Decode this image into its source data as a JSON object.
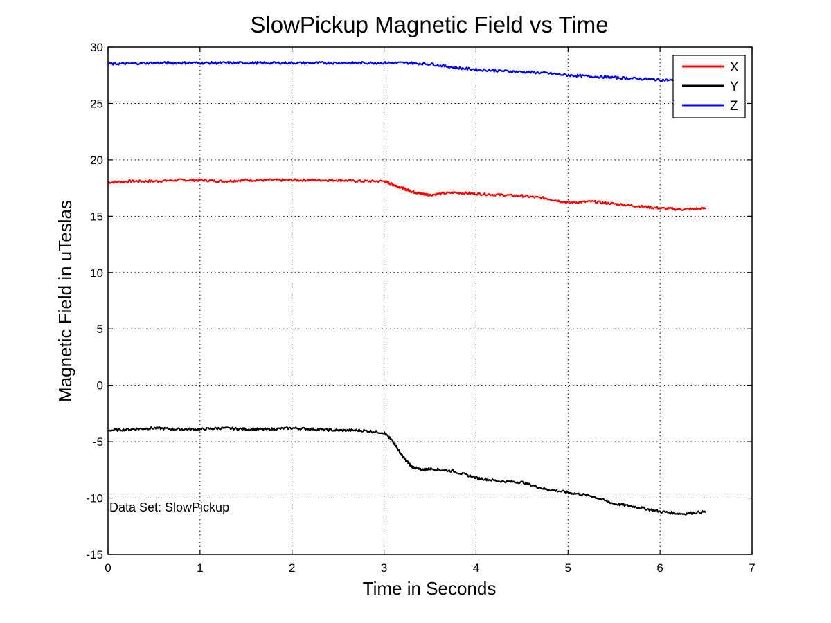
{
  "chart_data": {
    "type": "line",
    "title": "SlowPickup Magnetic Field vs Time",
    "xlabel": "Time in Seconds",
    "ylabel": "Magnetic Field in uTeslas",
    "xlim": [
      0,
      7
    ],
    "ylim": [
      -15,
      30
    ],
    "xticks": [
      "0",
      "1",
      "2",
      "3",
      "4",
      "5",
      "6",
      "7"
    ],
    "yticks": [
      "30",
      "25",
      "20",
      "15",
      "10",
      "5",
      "0",
      "-5",
      "-10",
      "-15"
    ],
    "grid": true,
    "legend_position": "top-right",
    "annotation": "Data Set: SlowPickup",
    "series": [
      {
        "name": "X",
        "color": "#ff0000",
        "x": [
          0,
          0.25,
          0.5,
          0.75,
          1.0,
          1.25,
          1.5,
          1.75,
          2.0,
          2.25,
          2.5,
          2.75,
          3.0,
          3.1,
          3.2,
          3.3,
          3.4,
          3.5,
          3.75,
          4.0,
          4.25,
          4.5,
          4.75,
          5.0,
          5.25,
          5.5,
          5.75,
          6.0,
          6.25,
          6.5
        ],
        "values": [
          18.0,
          18.1,
          18.1,
          18.2,
          18.2,
          18.1,
          18.2,
          18.2,
          18.2,
          18.2,
          18.2,
          18.1,
          18.1,
          17.8,
          17.5,
          17.2,
          17.0,
          16.9,
          17.1,
          17.0,
          16.9,
          16.8,
          16.6,
          16.2,
          16.3,
          16.1,
          15.9,
          15.7,
          15.6,
          15.7
        ]
      },
      {
        "name": "Y",
        "color": "#000000",
        "x": [
          0,
          0.25,
          0.5,
          0.75,
          1.0,
          1.25,
          1.5,
          1.75,
          2.0,
          2.25,
          2.5,
          2.75,
          3.0,
          3.1,
          3.2,
          3.3,
          3.4,
          3.5,
          3.75,
          4.0,
          4.25,
          4.5,
          4.75,
          5.0,
          5.25,
          5.5,
          5.75,
          6.0,
          6.25,
          6.5
        ],
        "values": [
          -4.0,
          -3.9,
          -3.8,
          -3.9,
          -3.9,
          -3.8,
          -3.9,
          -3.9,
          -3.8,
          -3.9,
          -4.0,
          -4.0,
          -4.2,
          -5.0,
          -6.3,
          -7.2,
          -7.5,
          -7.4,
          -7.6,
          -8.2,
          -8.5,
          -8.6,
          -9.2,
          -9.5,
          -9.8,
          -10.5,
          -10.8,
          -11.2,
          -11.4,
          -11.2
        ]
      },
      {
        "name": "Z",
        "color": "#0000ff",
        "x": [
          0,
          0.25,
          0.5,
          0.75,
          1.0,
          1.25,
          1.5,
          1.75,
          2.0,
          2.25,
          2.5,
          2.75,
          3.0,
          3.25,
          3.5,
          3.75,
          4.0,
          4.25,
          4.5,
          4.75,
          5.0,
          5.25,
          5.5,
          5.75,
          6.0,
          6.25,
          6.5
        ],
        "values": [
          28.5,
          28.55,
          28.6,
          28.6,
          28.6,
          28.6,
          28.6,
          28.6,
          28.6,
          28.6,
          28.6,
          28.6,
          28.6,
          28.6,
          28.5,
          28.2,
          28.0,
          27.9,
          27.8,
          27.7,
          27.5,
          27.4,
          27.3,
          27.2,
          27.1,
          27.0,
          27.0
        ]
      }
    ]
  }
}
